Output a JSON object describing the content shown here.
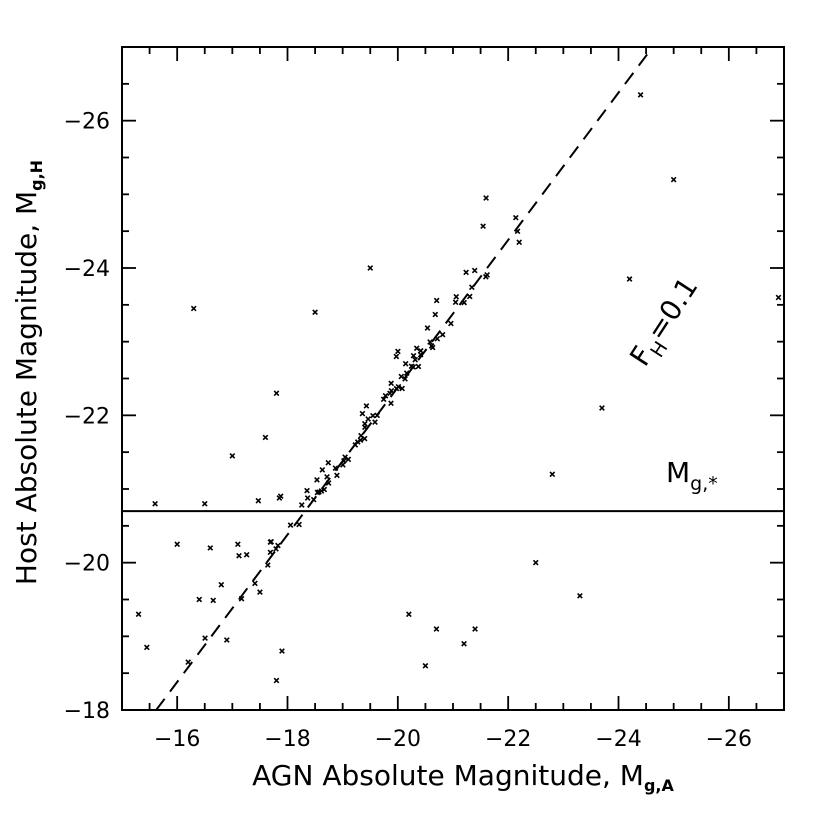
{
  "chart_data": {
    "type": "scatter",
    "xlabel": "AGN Absolute Magnitude, ",
    "xlabel_sub": "g,A",
    "xlabel_symbol": "M",
    "ylabel": "Host Absolute Magnitude, ",
    "ylabel_sub": "g,H",
    "ylabel_symbol": "M",
    "xlim": [
      -15,
      -27
    ],
    "ylim": [
      -18,
      -27
    ],
    "x_ticks": [
      -16,
      -18,
      -20,
      -22,
      -24,
      -26
    ],
    "y_ticks": [
      -18,
      -20,
      -22,
      -24,
      -26
    ],
    "x_tick_labels": [
      "−16",
      "−18",
      "−20",
      "−22",
      "−24",
      "−26"
    ],
    "y_tick_labels": [
      "−18",
      "−20",
      "−22",
      "−24",
      "−26"
    ],
    "reference_lines": [
      {
        "name": "M*",
        "style": "solid",
        "y": -20.7,
        "label": "M",
        "label_sub": "g,*"
      },
      {
        "name": "F_H=0.1",
        "style": "dashed",
        "slope": 1,
        "intercept": -2.38,
        "label": "F",
        "label_sub": "H",
        "label_rest": "=0.1"
      }
    ],
    "series": [
      {
        "marker": "x",
        "distribution": {
          "n": 4500,
          "x_center": -20.8,
          "x_spread": 1.3,
          "slope": 0.78,
          "intercept": -5.55,
          "y_scatter": 0.55
        },
        "outliers": [
          {
            "x": -16.3,
            "y": -23.45
          },
          {
            "x": -24.4,
            "y": -26.35
          },
          {
            "x": -26.9,
            "y": -23.6
          },
          {
            "x": -15.3,
            "y": -19.3
          },
          {
            "x": -15.45,
            "y": -18.85
          },
          {
            "x": -16.2,
            "y": -18.65
          },
          {
            "x": -16.4,
            "y": -19.5
          },
          {
            "x": -15.6,
            "y": -20.8
          },
          {
            "x": -16.0,
            "y": -20.25
          },
          {
            "x": -16.6,
            "y": -20.2
          },
          {
            "x": -16.8,
            "y": -19.7
          },
          {
            "x": -16.9,
            "y": -18.95
          },
          {
            "x": -17.1,
            "y": -20.25
          },
          {
            "x": -17.5,
            "y": -19.6
          },
          {
            "x": -17.8,
            "y": -18.4
          },
          {
            "x": -17.9,
            "y": -18.8
          },
          {
            "x": -20.2,
            "y": -19.3
          },
          {
            "x": -20.5,
            "y": -18.6
          },
          {
            "x": -20.7,
            "y": -19.1
          },
          {
            "x": -21.2,
            "y": -18.9
          },
          {
            "x": -21.4,
            "y": -19.1
          },
          {
            "x": -23.3,
            "y": -19.55
          },
          {
            "x": -22.5,
            "y": -20.0
          },
          {
            "x": -22.8,
            "y": -21.2
          },
          {
            "x": -23.7,
            "y": -22.1
          },
          {
            "x": -24.2,
            "y": -23.85
          },
          {
            "x": -25.0,
            "y": -25.2
          },
          {
            "x": -21.6,
            "y": -24.95
          },
          {
            "x": -22.2,
            "y": -24.35
          },
          {
            "x": -19.5,
            "y": -24.0
          },
          {
            "x": -18.5,
            "y": -23.4
          },
          {
            "x": -17.8,
            "y": -22.3
          },
          {
            "x": -17.6,
            "y": -21.7
          },
          {
            "x": -17.0,
            "y": -21.45
          },
          {
            "x": -16.5,
            "y": -20.8
          }
        ]
      }
    ]
  }
}
